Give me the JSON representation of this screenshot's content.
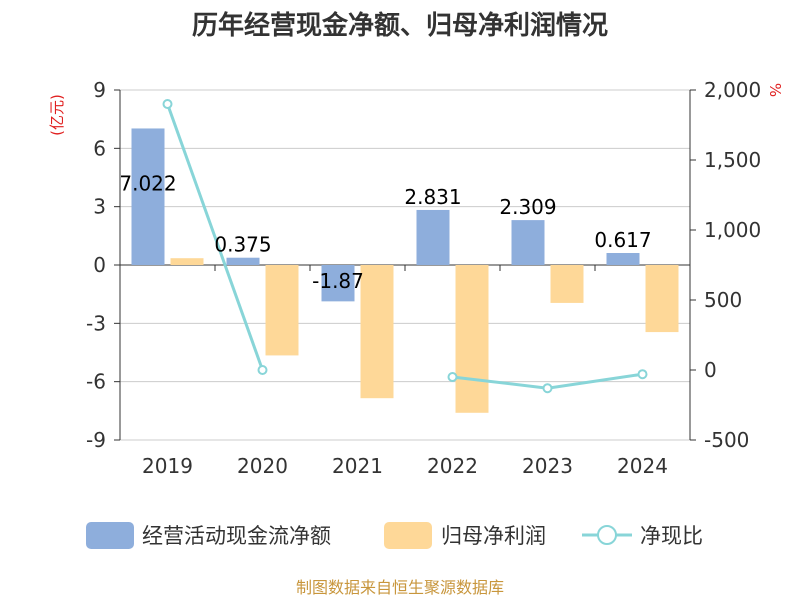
{
  "chart_data": {
    "type": "bar",
    "title": "历年经营现金净额、归母净利润情况",
    "left_axis_unit": "(亿元)",
    "right_axis_unit": "%",
    "categories": [
      "2019",
      "2020",
      "2021",
      "2022",
      "2023",
      "2024"
    ],
    "left_ylim": [
      -9,
      9
    ],
    "left_ticks": [
      "9",
      "6",
      "3",
      "0",
      "-3",
      "-6",
      "-9"
    ],
    "right_ylim": [
      -500,
      2000
    ],
    "right_ticks": [
      "2,000",
      "1,500",
      "1,000",
      "500",
      "0",
      "-500"
    ],
    "grid": true,
    "legend_position": "bottom",
    "series": [
      {
        "name": "经营活动现金流净额",
        "type": "bar",
        "axis": "left",
        "color": "#8eaedc",
        "values": [
          7.022,
          0.375,
          -1.87,
          2.831,
          2.309,
          0.617
        ],
        "labels": [
          "7.022",
          "0.375",
          "-1.87",
          "2.831",
          "2.309",
          "0.617"
        ]
      },
      {
        "name": "归母净利润",
        "type": "bar",
        "axis": "left",
        "color": "#fed898",
        "values": [
          0.35,
          -4.65,
          -6.85,
          -7.6,
          -1.95,
          -3.45
        ]
      },
      {
        "name": "净现比",
        "type": "line",
        "axis": "right",
        "color": "#88d5d8",
        "values": [
          1900,
          0,
          null,
          -50,
          -130,
          -30
        ]
      }
    ],
    "source": "制图数据来自恒生聚源数据库"
  }
}
